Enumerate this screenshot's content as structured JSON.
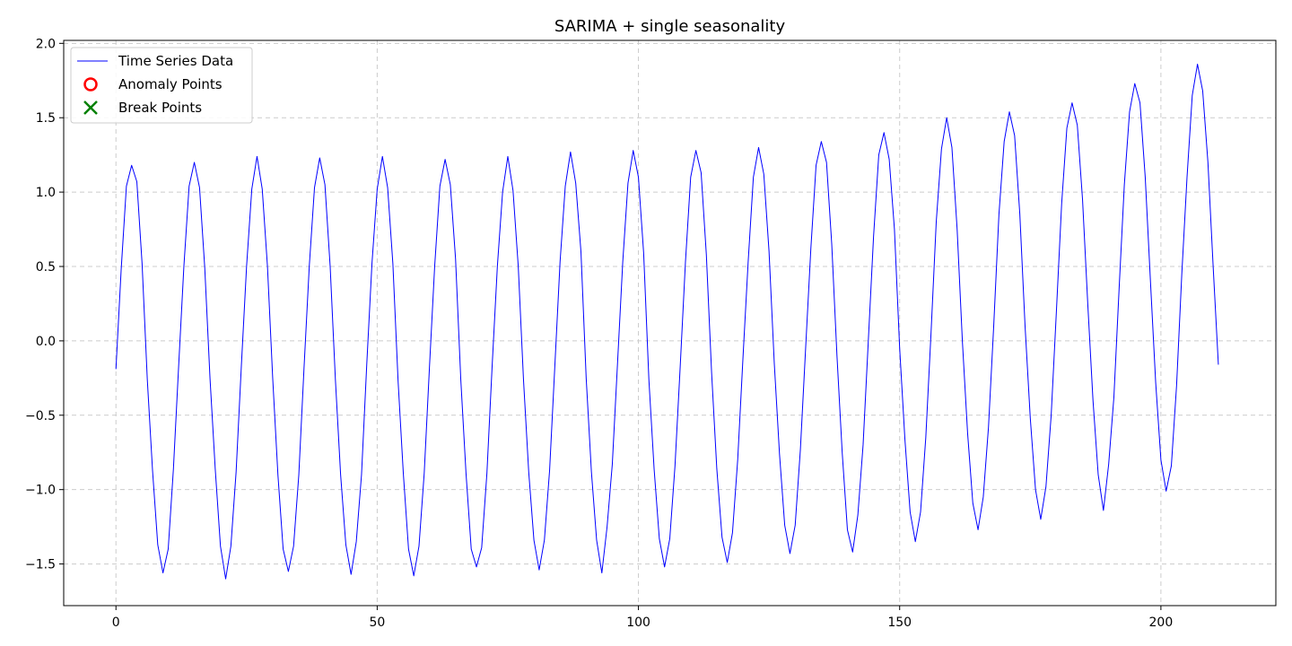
{
  "chart_data": {
    "type": "line",
    "title": "SARIMA + single seasonality",
    "xlabel": "",
    "ylabel": "",
    "xlim": [
      -10,
      222
    ],
    "ylim": [
      -1.78,
      2.02
    ],
    "xticks": [
      0,
      50,
      100,
      150,
      200
    ],
    "yticks": [
      -1.5,
      -1.0,
      -0.5,
      0.0,
      0.5,
      1.0,
      1.5,
      2.0
    ],
    "xtick_labels": [
      "0",
      "50",
      "100",
      "150",
      "200"
    ],
    "ytick_labels": [
      "−1.5",
      "−1.0",
      "−0.5",
      "0.0",
      "0.5",
      "1.0",
      "1.5",
      "2.0"
    ],
    "grid": true,
    "legend_position": "top-left",
    "seasonal_period": 12,
    "series": [
      {
        "name": "Time Series Data",
        "kind": "line",
        "color": "#0000ff",
        "x_start": 0,
        "x_step": 1,
        "values": [
          -0.19,
          0.48,
          1.04,
          1.18,
          1.07,
          0.52,
          -0.26,
          -0.87,
          -1.37,
          -1.56,
          -1.4,
          -0.86,
          -0.17,
          0.5,
          1.04,
          1.2,
          1.03,
          0.49,
          -0.25,
          -0.86,
          -1.38,
          -1.6,
          -1.38,
          -0.88,
          -0.17,
          0.5,
          1.02,
          1.24,
          1.02,
          0.5,
          -0.25,
          -0.9,
          -1.4,
          -1.55,
          -1.38,
          -0.9,
          -0.18,
          0.5,
          1.03,
          1.23,
          1.05,
          0.5,
          -0.26,
          -0.9,
          -1.37,
          -1.57,
          -1.35,
          -0.9,
          -0.16,
          0.52,
          1.02,
          1.24,
          1.03,
          0.52,
          -0.27,
          -0.89,
          -1.4,
          -1.58,
          -1.38,
          -0.89,
          -0.18,
          0.5,
          1.04,
          1.22,
          1.05,
          0.55,
          -0.26,
          -0.89,
          -1.4,
          -1.52,
          -1.39,
          -0.89,
          -0.17,
          0.5,
          1.0,
          1.24,
          1.01,
          0.5,
          -0.26,
          -0.88,
          -1.34,
          -1.54,
          -1.34,
          -0.87,
          -0.17,
          0.53,
          1.04,
          1.27,
          1.06,
          0.6,
          -0.25,
          -0.88,
          -1.34,
          -1.56,
          -1.25,
          -0.83,
          -0.15,
          0.53,
          1.06,
          1.28,
          1.1,
          0.59,
          -0.26,
          -0.86,
          -1.33,
          -1.52,
          -1.33,
          -0.84,
          -0.17,
          0.53,
          1.1,
          1.28,
          1.13,
          0.58,
          -0.21,
          -0.86,
          -1.32,
          -1.49,
          -1.29,
          -0.8,
          -0.12,
          0.53,
          1.1,
          1.3,
          1.12,
          0.6,
          -0.15,
          -0.76,
          -1.24,
          -1.43,
          -1.24,
          -0.73,
          -0.05,
          0.62,
          1.18,
          1.34,
          1.2,
          0.65,
          -0.1,
          -0.75,
          -1.27,
          -1.42,
          -1.17,
          -0.7,
          0.0,
          0.7,
          1.25,
          1.4,
          1.22,
          0.75,
          -0.05,
          -0.66,
          -1.15,
          -1.35,
          -1.15,
          -0.65,
          0.05,
          0.8,
          1.29,
          1.5,
          1.3,
          0.75,
          0.0,
          -0.62,
          -1.09,
          -1.27,
          -1.05,
          -0.58,
          0.1,
          0.85,
          1.34,
          1.54,
          1.38,
          0.85,
          0.1,
          -0.52,
          -1.0,
          -1.2,
          -0.98,
          -0.5,
          0.2,
          0.92,
          1.43,
          1.6,
          1.45,
          0.95,
          0.25,
          -0.4,
          -0.9,
          -1.14,
          -0.83,
          -0.38,
          0.35,
          1.05,
          1.54,
          1.73,
          1.6,
          1.1,
          0.4,
          -0.28,
          -0.8,
          -1.01,
          -0.84,
          -0.3,
          0.45,
          1.1,
          1.65,
          1.86,
          1.68,
          1.2,
          0.5,
          -0.16
        ]
      },
      {
        "name": "Anomaly Points",
        "kind": "scatter",
        "marker": "circle",
        "color": "#ff0000",
        "x": [],
        "y": []
      },
      {
        "name": "Break Points",
        "kind": "scatter",
        "marker": "x",
        "color": "#008000",
        "x": [],
        "y": []
      }
    ]
  }
}
